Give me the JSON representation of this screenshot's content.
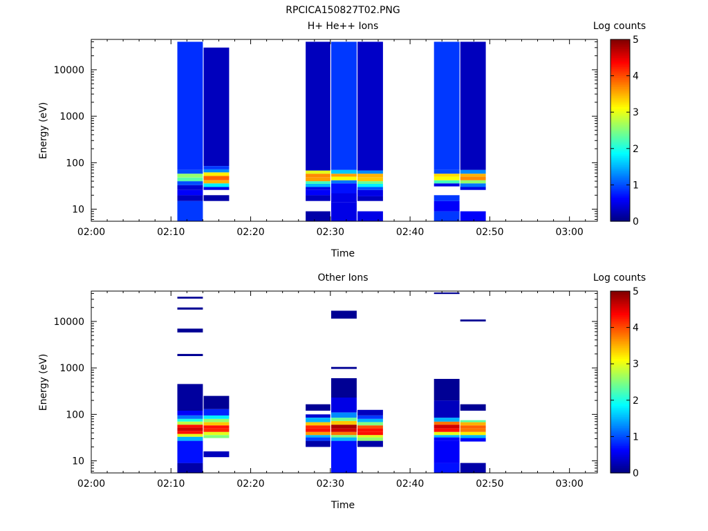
{
  "figure_title": "RPCICA150827T02.PNG",
  "chart_data": [
    {
      "type": "heatmap",
      "title": "H+ He++ Ions",
      "xlabel": "Time",
      "ylabel": "Energy (eV)",
      "x_ticks": [
        "02:00",
        "02:10",
        "02:20",
        "02:30",
        "02:40",
        "02:50",
        "03:00"
      ],
      "xlim_minutes": [
        0,
        63.5
      ],
      "y_scale": "log",
      "ylim": [
        5.5,
        45000
      ],
      "y_ticks": [
        10,
        100,
        1000,
        10000
      ],
      "y_tick_labels": [
        "10",
        "100",
        "1000",
        "10000"
      ],
      "colorbar": {
        "label": "Log counts",
        "min": 0,
        "max": 5,
        "ticks": [
          "0",
          "1",
          "2",
          "3",
          "4",
          "5"
        ]
      },
      "columns": [
        {
          "t_start": 10.8,
          "t_end": 14.0,
          "bands": [
            [
              5.5,
              15,
              0.9
            ],
            [
              15,
              20,
              0.3
            ],
            [
              20,
              26,
              0.6
            ],
            [
              26,
              33,
              0.4
            ],
            [
              33,
              40,
              1.0
            ],
            [
              40,
              48,
              2.3
            ],
            [
              48,
              58,
              2.6
            ],
            [
              58,
              70,
              1.0
            ],
            [
              70,
              40000,
              0.85
            ]
          ]
        },
        {
          "t_start": 14.1,
          "t_end": 17.3,
          "bands": [
            [
              15,
              20,
              0.2
            ],
            [
              26,
              30,
              0.5
            ],
            [
              30,
              36,
              1.8
            ],
            [
              36,
              42,
              3.5
            ],
            [
              42,
              52,
              3.9
            ],
            [
              52,
              62,
              3.2
            ],
            [
              62,
              72,
              1.3
            ],
            [
              72,
              85,
              0.9
            ],
            [
              85,
              30000,
              0.3
            ]
          ]
        },
        {
          "t_start": 26.9,
          "t_end": 30.0,
          "bands": [
            [
              5.5,
              9,
              0.2
            ],
            [
              15,
              20,
              0.3
            ],
            [
              20,
              26,
              0.6
            ],
            [
              26,
              30,
              0.5
            ],
            [
              30,
              35,
              1.5
            ],
            [
              35,
              40,
              2.2
            ],
            [
              40,
              48,
              3.6
            ],
            [
              48,
              58,
              3.7
            ],
            [
              58,
              68,
              3.0
            ],
            [
              68,
              40000,
              0.3
            ]
          ]
        },
        {
          "t_start": 30.1,
          "t_end": 33.3,
          "bands": [
            [
              5.5,
              14,
              0.5
            ],
            [
              14,
              22,
              0.5
            ],
            [
              22,
              30,
              0.7
            ],
            [
              30,
              36,
              0.7
            ],
            [
              36,
              42,
              1.2
            ],
            [
              42,
              50,
              3.1
            ],
            [
              50,
              58,
              3.6
            ],
            [
              58,
              70,
              1.6
            ],
            [
              70,
              40000,
              0.9
            ]
          ]
        },
        {
          "t_start": 33.4,
          "t_end": 36.6,
          "bands": [
            [
              5.5,
              9,
              0.5
            ],
            [
              15,
              19,
              0.3
            ],
            [
              19,
              26,
              0.5
            ],
            [
              26,
              30,
              1.0
            ],
            [
              30,
              35,
              1.8
            ],
            [
              35,
              40,
              2.4
            ],
            [
              40,
              48,
              3.4
            ],
            [
              48,
              58,
              3.5
            ],
            [
              58,
              68,
              1.3
            ],
            [
              68,
              40000,
              0.35
            ]
          ]
        },
        {
          "t_start": 43.0,
          "t_end": 46.2,
          "bands": [
            [
              5.5,
              9,
              0.9
            ],
            [
              9,
              15,
              0.6
            ],
            [
              15,
              20,
              0.9
            ],
            [
              31,
              36,
              0.5
            ],
            [
              36,
              42,
              2.2
            ],
            [
              42,
              50,
              3.1
            ],
            [
              50,
              58,
              3.3
            ],
            [
              58,
              70,
              1.0
            ],
            [
              70,
              40000,
              0.9
            ]
          ]
        },
        {
          "t_start": 46.3,
          "t_end": 49.5,
          "bands": [
            [
              5.5,
              9,
              0.6
            ],
            [
              26,
              30,
              0.5
            ],
            [
              30,
              36,
              1.2
            ],
            [
              36,
              42,
              2.6
            ],
            [
              42,
              50,
              3.7
            ],
            [
              50,
              58,
              3.5
            ],
            [
              58,
              70,
              1.3
            ],
            [
              70,
              40000,
              0.3
            ]
          ]
        }
      ]
    },
    {
      "type": "heatmap",
      "title": "Other Ions",
      "xlabel": "Time",
      "ylabel": "Energy (eV)",
      "x_ticks": [
        "02:00",
        "02:10",
        "02:20",
        "02:30",
        "02:40",
        "02:50",
        "03:00"
      ],
      "xlim_minutes": [
        0,
        63.5
      ],
      "y_scale": "log",
      "ylim": [
        5.5,
        45000
      ],
      "y_ticks": [
        10,
        100,
        1000,
        10000
      ],
      "y_tick_labels": [
        "10",
        "100",
        "1000",
        "10000"
      ],
      "colorbar": {
        "label": "Log counts",
        "min": 0,
        "max": 5,
        "ticks": [
          "0",
          "1",
          "2",
          "3",
          "4",
          "5"
        ]
      },
      "columns": [
        {
          "t_start": 10.8,
          "t_end": 14.0,
          "bands": [
            [
              5.5,
              9,
              0.2
            ],
            [
              9,
              27,
              0.7
            ],
            [
              27,
              33,
              1.5
            ],
            [
              33,
              38,
              3.0
            ],
            [
              38,
              44,
              4.3
            ],
            [
              44,
              52,
              4.6
            ],
            [
              52,
              60,
              4.3
            ],
            [
              60,
              70,
              2.8
            ],
            [
              70,
              80,
              2.0
            ],
            [
              80,
              95,
              1.2
            ],
            [
              95,
              120,
              0.6
            ],
            [
              120,
              450,
              0.15
            ],
            [
              1800,
              2000,
              0.1
            ],
            [
              5800,
              7000,
              0.1
            ],
            [
              18000,
              20000,
              0.1
            ],
            [
              31000,
              34000,
              0.1
            ]
          ]
        },
        {
          "t_start": 14.1,
          "t_end": 17.3,
          "bands": [
            [
              12,
              16,
              0.3
            ],
            [
              31,
              36,
              2.5
            ],
            [
              36,
              42,
              3.0
            ],
            [
              42,
              50,
              4.2
            ],
            [
              50,
              58,
              4.3
            ],
            [
              58,
              68,
              3.4
            ],
            [
              68,
              80,
              2.6
            ],
            [
              80,
              95,
              1.8
            ],
            [
              95,
              130,
              0.8
            ],
            [
              130,
              250,
              0.1
            ]
          ]
        },
        {
          "t_start": 26.9,
          "t_end": 30.0,
          "bands": [
            [
              20,
              27,
              0.2
            ],
            [
              27,
              32,
              0.9
            ],
            [
              32,
              36,
              1.5
            ],
            [
              36,
              42,
              3.6
            ],
            [
              42,
              50,
              4.3
            ],
            [
              50,
              58,
              4.2
            ],
            [
              58,
              68,
              3.4
            ],
            [
              68,
              85,
              1.5
            ],
            [
              85,
              100,
              0.4
            ],
            [
              120,
              165,
              0.1
            ]
          ]
        },
        {
          "t_start": 30.1,
          "t_end": 33.3,
          "bands": [
            [
              5.5,
              27,
              0.7
            ],
            [
              27,
              32,
              1.5
            ],
            [
              32,
              36,
              2.5
            ],
            [
              36,
              42,
              3.8
            ],
            [
              42,
              50,
              4.6
            ],
            [
              50,
              60,
              4.8
            ],
            [
              60,
              72,
              3.4
            ],
            [
              72,
              85,
              2.4
            ],
            [
              85,
              110,
              1.3
            ],
            [
              110,
              230,
              0.5
            ],
            [
              230,
              600,
              0.1
            ],
            [
              950,
              1050,
              0.1
            ],
            [
              11500,
              17000,
              0.1
            ]
          ]
        },
        {
          "t_start": 33.4,
          "t_end": 36.6,
          "bands": [
            [
              20,
              27,
              0.2
            ],
            [
              27,
              32,
              2.6
            ],
            [
              32,
              36,
              3.0
            ],
            [
              36,
              42,
              4.3
            ],
            [
              42,
              50,
              4.3
            ],
            [
              50,
              58,
              4.0
            ],
            [
              58,
              68,
              2.5
            ],
            [
              68,
              80,
              1.5
            ],
            [
              80,
              95,
              0.9
            ],
            [
              95,
              125,
              0.3
            ]
          ]
        },
        {
          "t_start": 43.0,
          "t_end": 46.2,
          "bands": [
            [
              5.5,
              9,
              0.7
            ],
            [
              9,
              27,
              0.6
            ],
            [
              27,
              32,
              0.6
            ],
            [
              32,
              36,
              1.5
            ],
            [
              36,
              42,
              3.0
            ],
            [
              42,
              50,
              4.3
            ],
            [
              50,
              60,
              4.6
            ],
            [
              60,
              70,
              3.8
            ],
            [
              70,
              85,
              1.5
            ],
            [
              85,
              200,
              0.3
            ],
            [
              200,
              580,
              0.1
            ],
            [
              39000,
              42000,
              0.1
            ]
          ]
        },
        {
          "t_start": 46.3,
          "t_end": 49.5,
          "bands": [
            [
              5.5,
              9,
              0.2
            ],
            [
              26,
              31,
              0.6
            ],
            [
              31,
              36,
              1.5
            ],
            [
              36,
              42,
              3.2
            ],
            [
              42,
              50,
              3.8
            ],
            [
              50,
              58,
              3.9
            ],
            [
              58,
              68,
              3.5
            ],
            [
              68,
              75,
              2.3
            ],
            [
              120,
              165,
              0.1
            ],
            [
              10000,
              11000,
              0.1
            ]
          ]
        }
      ]
    }
  ]
}
